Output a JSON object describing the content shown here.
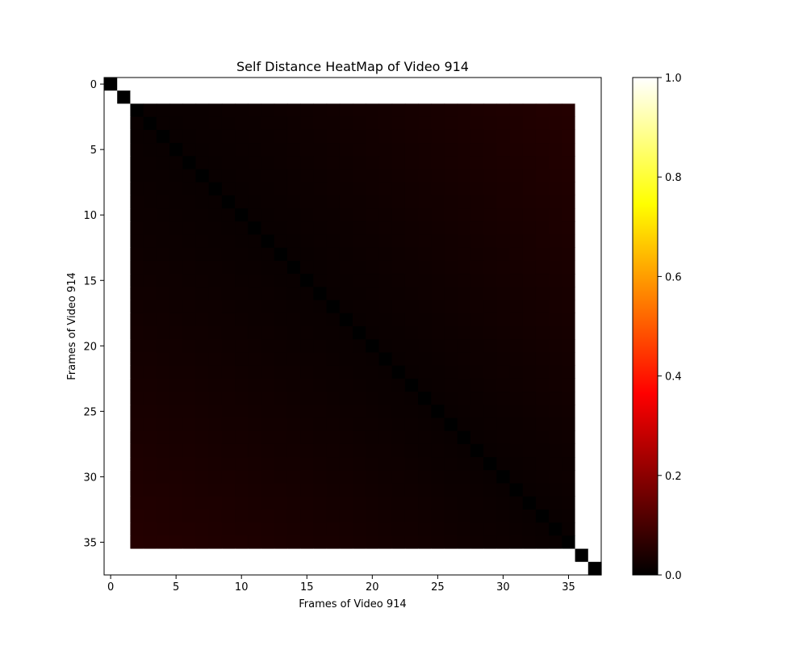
{
  "chart_data": {
    "type": "heatmap",
    "title": "Self Distance HeatMap of Video 914",
    "xlabel": "Frames of Video 914",
    "ylabel": "Frames of Video 914",
    "n": 38,
    "xlim": [
      -0.5,
      37.5
    ],
    "ylim": [
      37.5,
      -0.5
    ],
    "xticks": [
      0,
      5,
      10,
      15,
      20,
      25,
      30,
      35
    ],
    "yticks": [
      0,
      5,
      10,
      15,
      20,
      25,
      30,
      35
    ],
    "colormap": "hot",
    "colorbar": {
      "min": 0.0,
      "max": 1.0,
      "ticks": [
        "0.0",
        "0.2",
        "0.4",
        "0.6",
        "0.8",
        "1.0"
      ]
    },
    "values_description_note": null,
    "block": {
      "start": 2,
      "end": 35,
      "within_block_value_range": [
        0.0,
        0.08
      ],
      "outside_block_value": 1.0,
      "diagonal_value": 0.0
    },
    "grid": false
  },
  "colors": {
    "cmap_black": "#000000",
    "cmap_red": "#ff0000",
    "cmap_yellow": "#ffff00",
    "cmap_white": "#ffffff"
  }
}
